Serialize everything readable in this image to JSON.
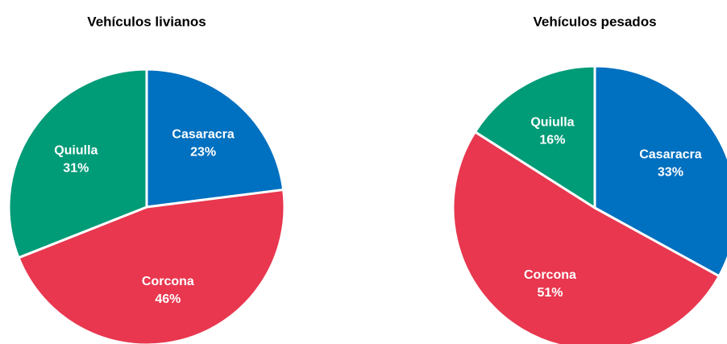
{
  "chart_data": [
    {
      "type": "pie",
      "title": "Vehículos livianos",
      "categories": [
        "Casaracra",
        "Corcona",
        "Quiulla"
      ],
      "values": [
        23,
        46,
        31
      ],
      "value_labels": [
        "23%",
        "46%",
        "31%"
      ],
      "colors": [
        "#0070c0",
        "#e8374f",
        "#009b77"
      ]
    },
    {
      "type": "pie",
      "title": "Vehículos pesados",
      "categories": [
        "Casaracra",
        "Corcona",
        "Quiulla"
      ],
      "values": [
        33,
        51,
        16
      ],
      "value_labels": [
        "33%",
        "51%",
        "16%"
      ],
      "colors": [
        "#0070c0",
        "#e8374f",
        "#009b77"
      ]
    }
  ]
}
